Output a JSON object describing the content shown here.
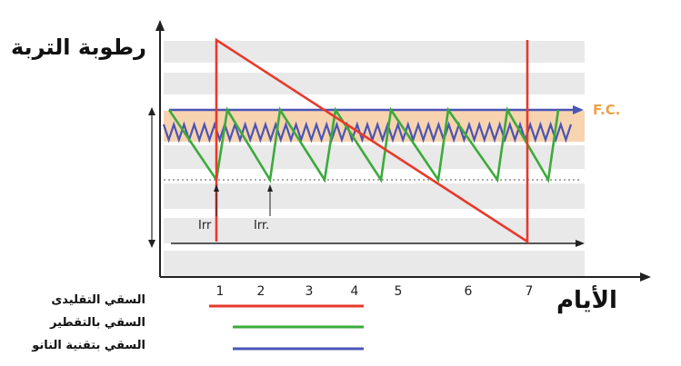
{
  "axis": {
    "y_title": "رطوبة التربة",
    "x_title": "الأيام",
    "x_ticks": [
      "1",
      "2",
      "3",
      "4",
      "5",
      "6",
      "7"
    ],
    "fc_label": "F.C.",
    "irr_labels": [
      "Irr",
      "Irr."
    ]
  },
  "legend": [
    {
      "label": "السقي التقليدى",
      "color": "#e8392b"
    },
    {
      "label": "السقي بالتقطير",
      "color": "#3aab3a"
    },
    {
      "label": "السقي بتقنية النانو",
      "color": "#4a55b5"
    }
  ],
  "colors": {
    "band_light": "#e9e9e9",
    "band_fc": "#f7d3b0",
    "axis": "#222222"
  }
}
